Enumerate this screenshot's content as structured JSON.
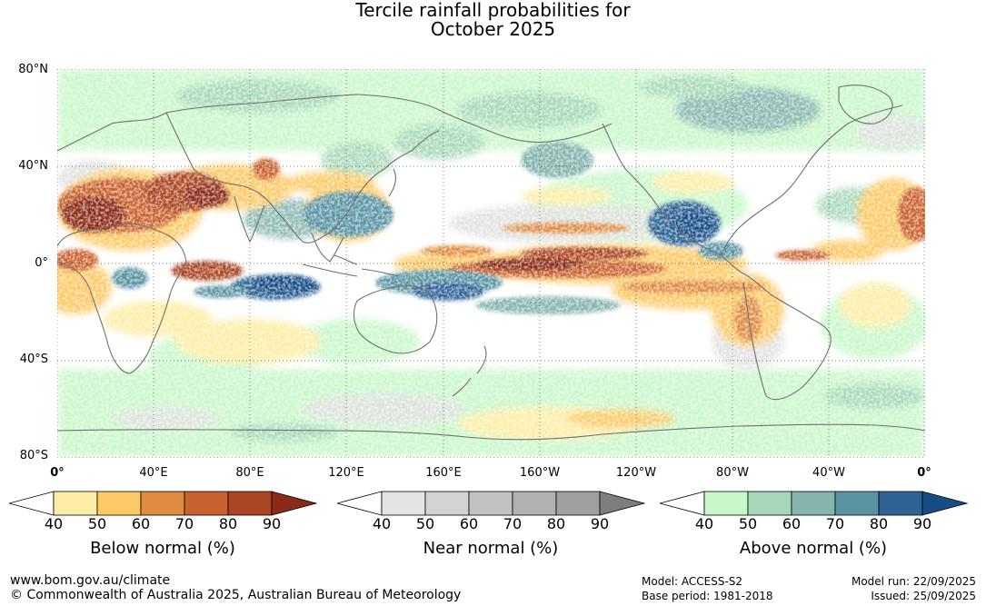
{
  "title": {
    "line1": "Tercile rainfall probabilities for",
    "line2": "October 2025"
  },
  "axes": {
    "lat_labels": [
      "80°N",
      "40°N",
      "0°",
      "40°S",
      "80°S"
    ],
    "lon_labels": [
      "0°",
      "40°E",
      "80°E",
      "120°E",
      "160°E",
      "160°W",
      "120°W",
      "80°W",
      "40°W",
      "0°"
    ]
  },
  "map": {
    "projection": "equirectangular",
    "lon_range": [
      0,
      360
    ],
    "lat_range": [
      -80,
      80
    ],
    "grid_step_lon": 40,
    "grid_step_lat": 40,
    "features": [
      {
        "category": "below",
        "level": 3,
        "label": "Sahara / Arabia dry signal"
      },
      {
        "category": "below",
        "level": 3,
        "label": "Equatorial central Pacific dry band"
      },
      {
        "category": "below",
        "level": 3,
        "label": "Western Indian Ocean dry signal"
      },
      {
        "category": "above",
        "level": 5,
        "label": "Eastern Indian Ocean wet signal"
      },
      {
        "category": "above",
        "level": 4,
        "label": "Maritime continent / SW Pacific wet signal"
      },
      {
        "category": "above",
        "level": 5,
        "label": "Caribbean / Gulf of Mexico wet signal"
      }
    ]
  },
  "legends": [
    {
      "id": "below",
      "title": "Below normal (%)",
      "ticks": [
        "40",
        "50",
        "60",
        "70",
        "80",
        "90"
      ],
      "colors": [
        "#ffffff",
        "#fdeea5",
        "#fdc965",
        "#df8c40",
        "#c9622f",
        "#ab4524",
        "#8b2a18"
      ]
    },
    {
      "id": "near",
      "title": "Near normal (%)",
      "ticks": [
        "40",
        "50",
        "60",
        "70",
        "80",
        "90"
      ],
      "colors": [
        "#ffffff",
        "#e4e4e4",
        "#d3d3d3",
        "#c2c2c2",
        "#b2b2b2",
        "#a0a0a0",
        "#7e7e7e"
      ]
    },
    {
      "id": "above",
      "title": "Above normal (%)",
      "ticks": [
        "40",
        "50",
        "60",
        "70",
        "80",
        "90"
      ],
      "colors": [
        "#ffffff",
        "#c8f8c9",
        "#a5d7b8",
        "#84b4ae",
        "#5a94a3",
        "#2f6396",
        "#174d85"
      ]
    }
  ],
  "footer": {
    "url": "www.bom.gov.au/climate",
    "copyright": "© Commonwealth of Australia 2025, Australian Bureau of Meteorology",
    "model": "Model: ACCESS-S2",
    "base_period": "Base period: 1981-2018",
    "model_run": "Model run: 22/09/2025",
    "issued": "Issued: 25/09/2025"
  }
}
